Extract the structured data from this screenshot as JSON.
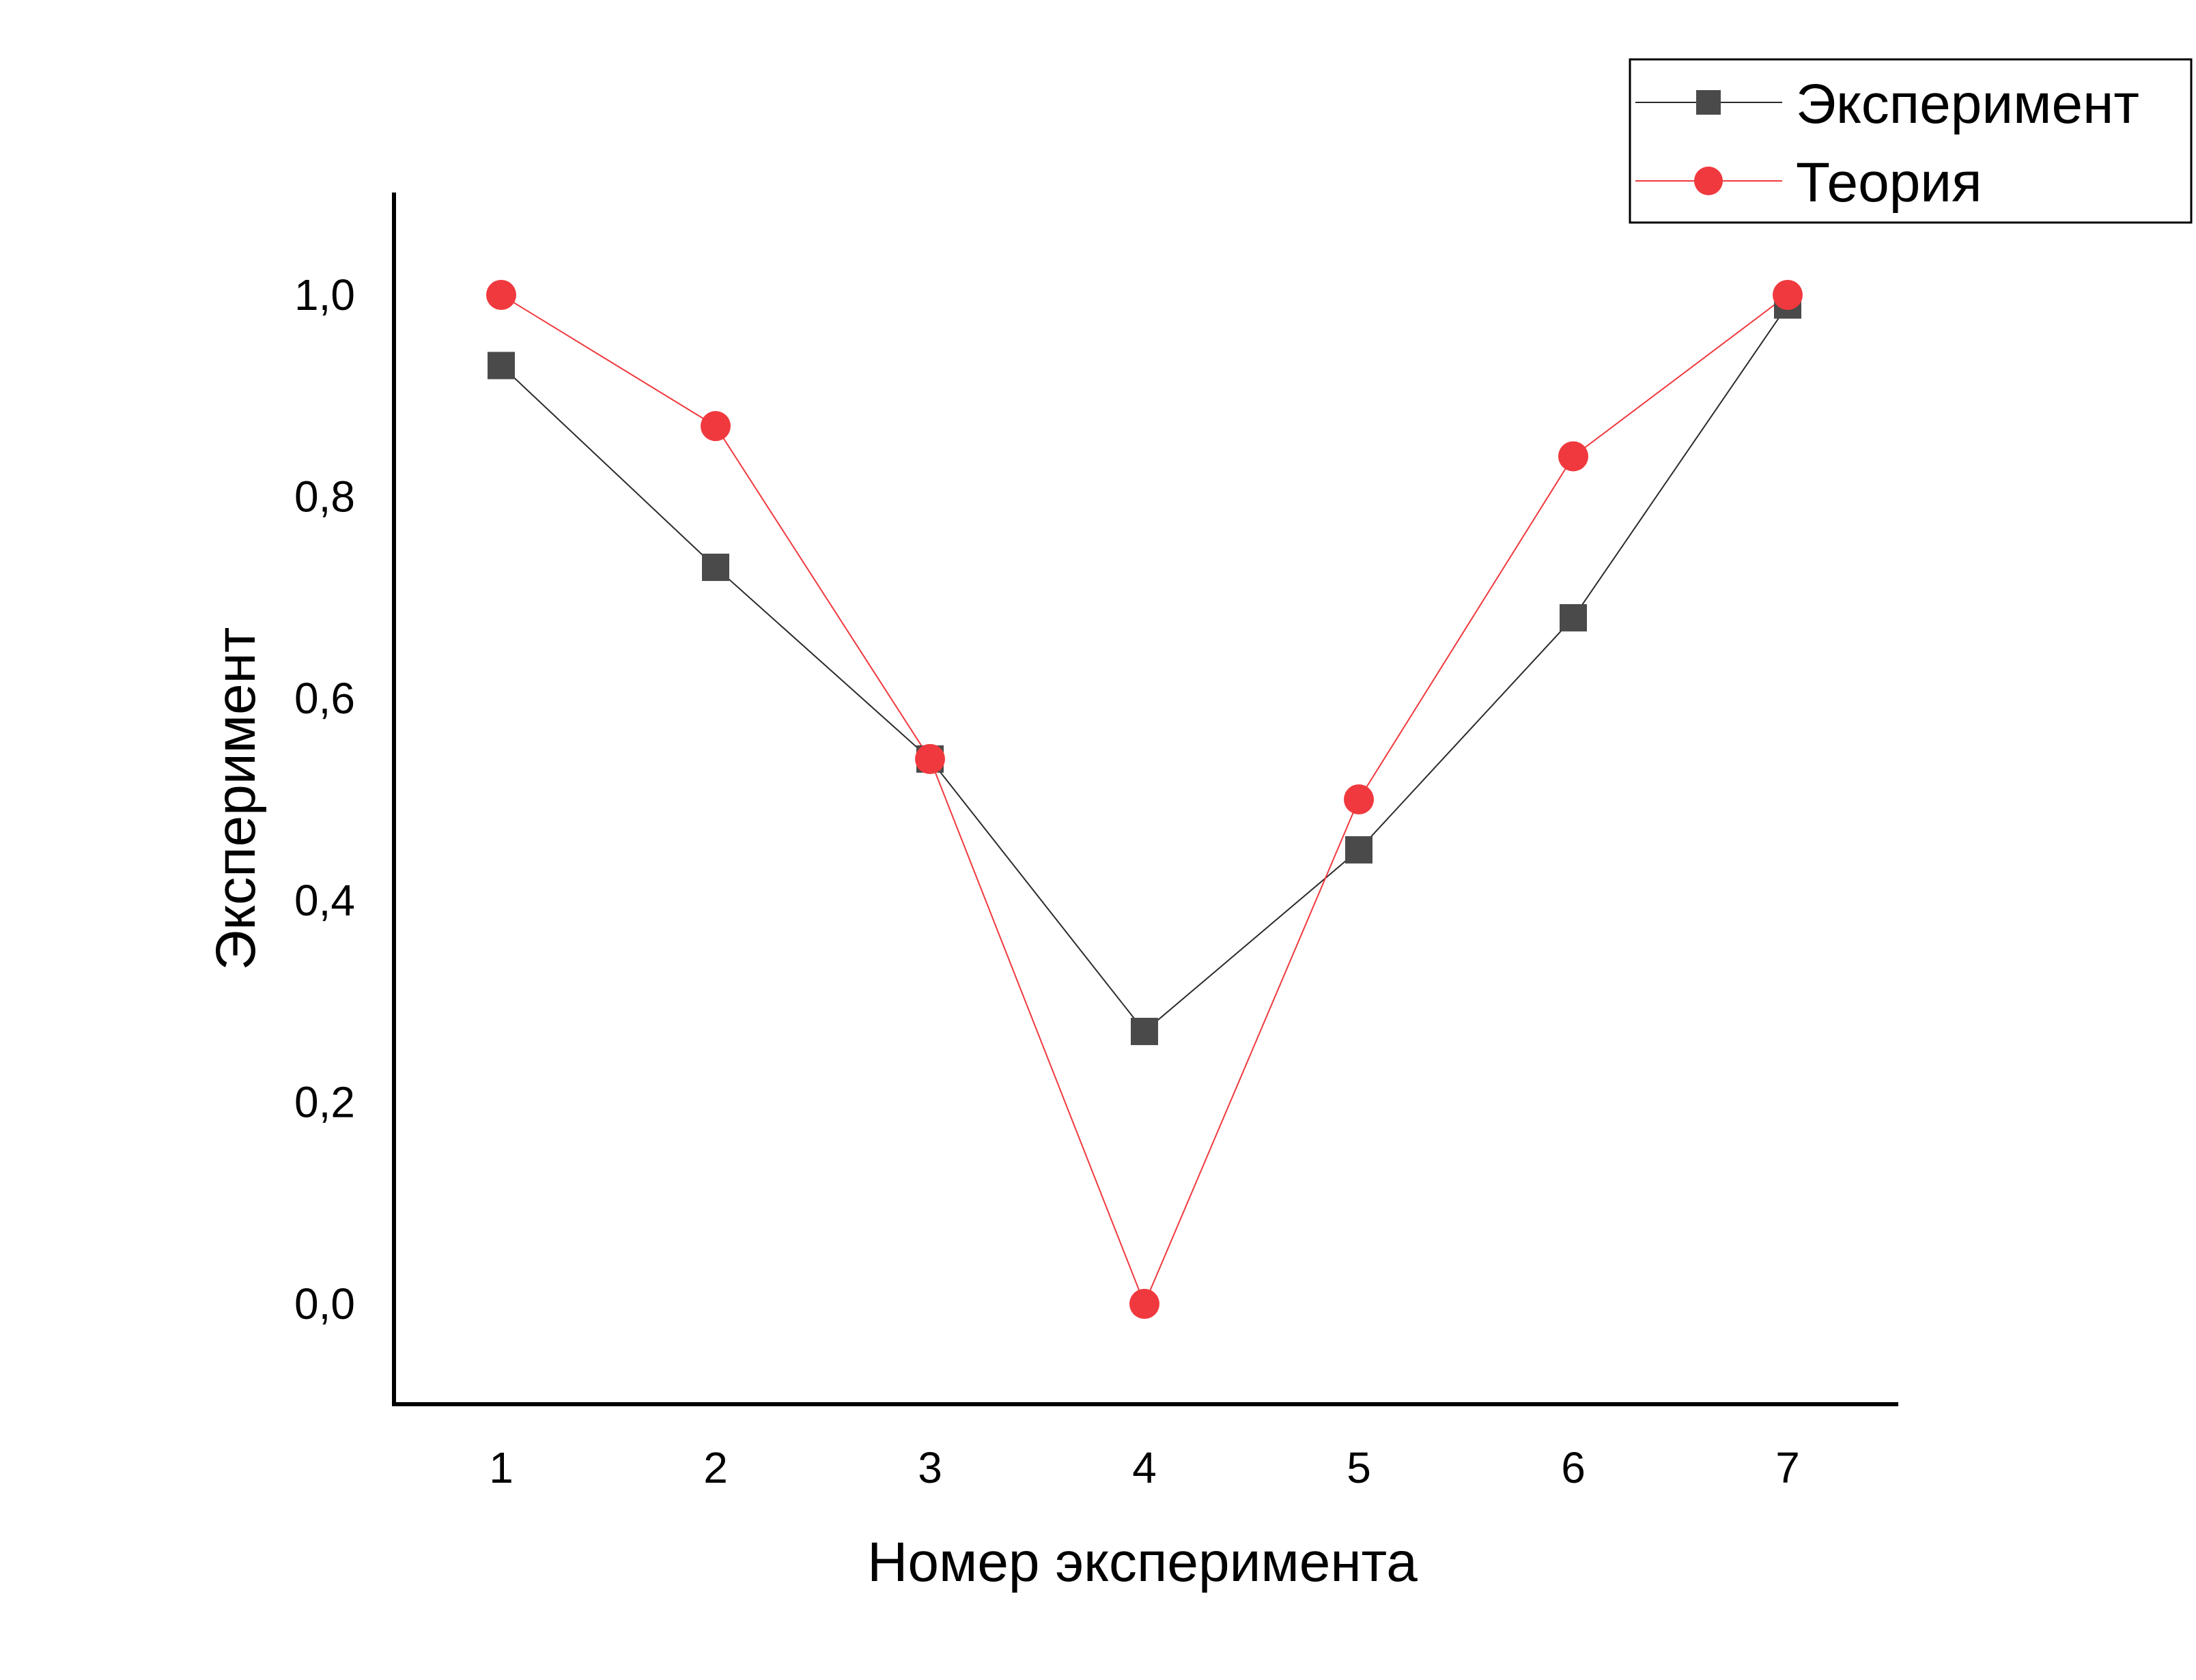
{
  "chart_data": {
    "type": "line",
    "xlabel": "Номер эксперимента",
    "ylabel": "Эксперимент",
    "x": [
      1,
      2,
      3,
      4,
      5,
      6,
      7
    ],
    "xticks": [
      "1",
      "2",
      "3",
      "4",
      "5",
      "6",
      "7"
    ],
    "xlim": [
      0.5,
      7.5
    ],
    "ylim": [
      -0.1,
      1.1
    ],
    "yticks": [
      "0,0",
      "0,2",
      "0,4",
      "0,6",
      "0,8",
      "1,0"
    ],
    "ytick_values": [
      0.0,
      0.2,
      0.4,
      0.6,
      0.8,
      1.0
    ],
    "grid": false,
    "legend_position": "top-right",
    "series": [
      {
        "name": "Эксперимент",
        "marker": "square",
        "color": "#4a4a4a",
        "line_color": "#2b2b2b",
        "values": [
          0.93,
          0.73,
          0.54,
          0.27,
          0.45,
          0.68,
          0.99
        ]
      },
      {
        "name": "Теория",
        "marker": "circle",
        "color": "#f0393e",
        "line_color": "#f0393e",
        "values": [
          1.0,
          0.87,
          0.54,
          0.0,
          0.5,
          0.84,
          1.0
        ]
      }
    ]
  }
}
